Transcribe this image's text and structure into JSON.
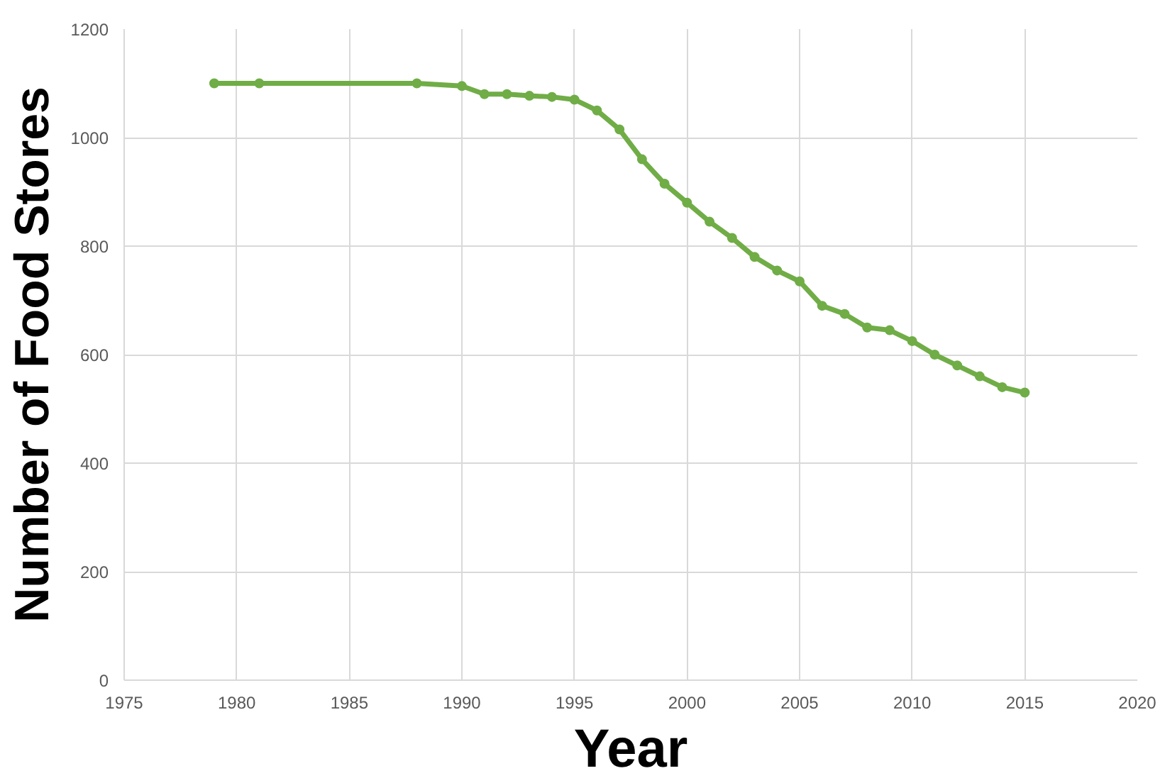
{
  "chart_data": {
    "type": "line",
    "xlabel": "Year",
    "ylabel": "Number of Food Stores",
    "x": [
      1979,
      1981,
      1988,
      1990,
      1991,
      1992,
      1993,
      1994,
      1995,
      1996,
      1997,
      1998,
      1999,
      2000,
      2001,
      2002,
      2003,
      2004,
      2005,
      2006,
      2007,
      2008,
      2009,
      2010,
      2011,
      2012,
      2013,
      2014,
      2015
    ],
    "series": [
      {
        "color": "#70ad47",
        "values": [
          1100,
          1100,
          1100,
          1095,
          1080,
          1080,
          1077,
          1075,
          1070,
          1050,
          1015,
          960,
          915,
          880,
          845,
          815,
          780,
          755,
          735,
          690,
          675,
          650,
          645,
          625,
          600,
          580,
          560,
          540,
          530
        ]
      }
    ],
    "xlim": [
      1975,
      2020
    ],
    "xticks": [
      1975,
      1980,
      1985,
      1990,
      1995,
      2000,
      2005,
      2010,
      2015,
      2020
    ],
    "ylim": [
      0,
      1200
    ],
    "yticks": [
      0,
      200,
      400,
      600,
      800,
      1000,
      1200
    ],
    "grid": true,
    "marker": "circle",
    "line_style": "solid"
  }
}
